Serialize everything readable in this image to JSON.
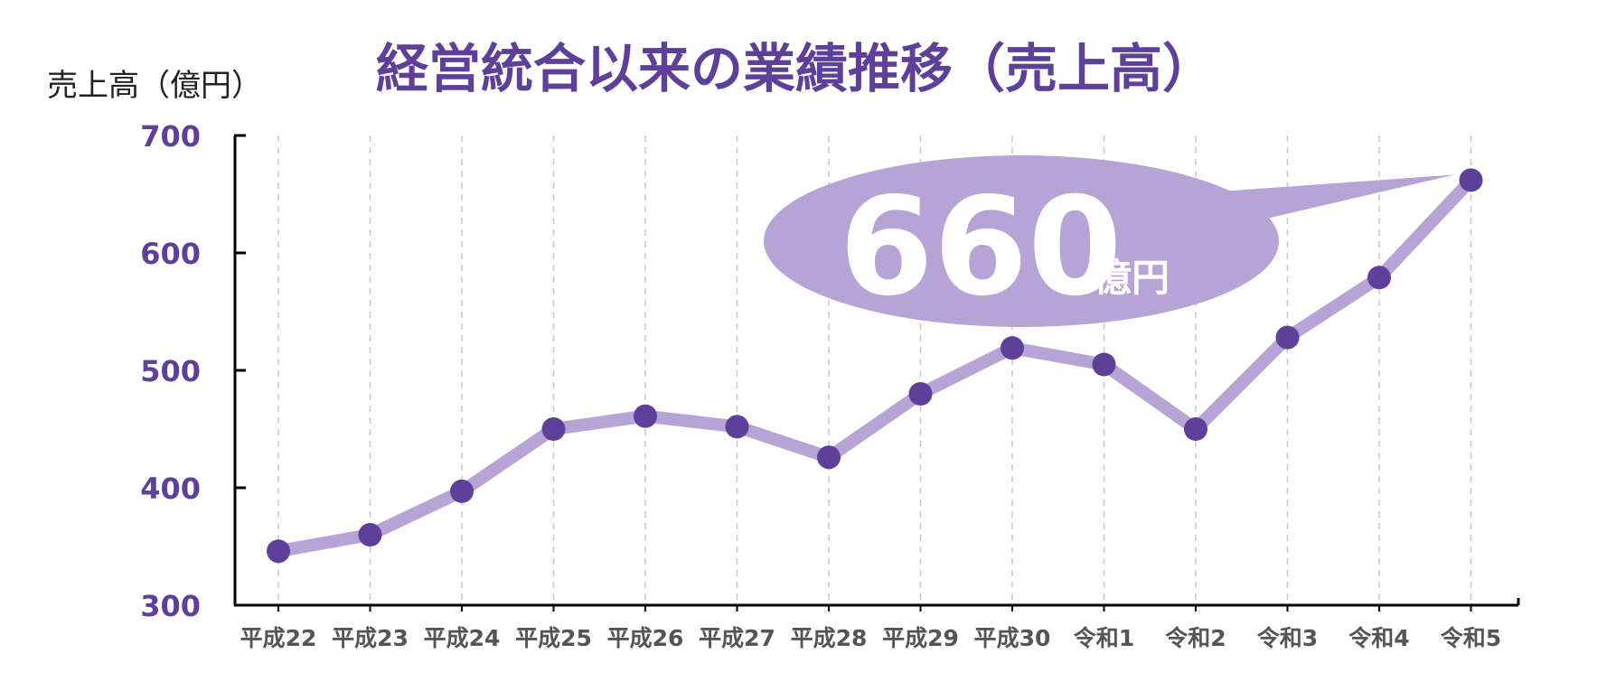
{
  "chart_data": {
    "type": "line",
    "title": "経営統合以来の業績推移（売上高）",
    "ylabel": "売上高（億円）",
    "xlabel": "",
    "categories": [
      "平成22",
      "平成23",
      "平成24",
      "平成25",
      "平成26",
      "平成27",
      "平成28",
      "平成29",
      "平成30",
      "令和1",
      "令和2",
      "令和3",
      "令和4",
      "令和5"
    ],
    "values": [
      346,
      360,
      397,
      450,
      461,
      452,
      426,
      480,
      519,
      505,
      450,
      528,
      579,
      662
    ],
    "ylim": [
      300,
      700
    ],
    "yticks": [
      300,
      400,
      500,
      600,
      700
    ],
    "grid": "vertical dashed",
    "legend": "none",
    "annotation": {
      "value": "660",
      "unit": "億円"
    }
  },
  "colors": {
    "accent": "#5e3f99",
    "line": "#b7a3d6",
    "marker": "#5e3f99",
    "callout": "#b7a3d6",
    "callout_text": "#ffffff",
    "axis": "#000000",
    "grid": "#c8c8c8",
    "xtick": "#555555",
    "ylabel": "#222222"
  }
}
